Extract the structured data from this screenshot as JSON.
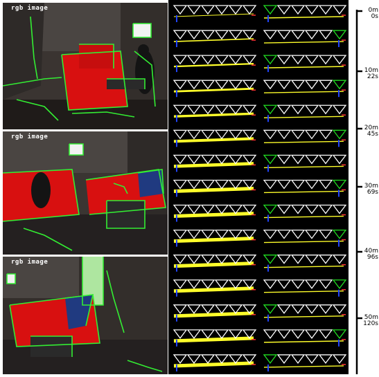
{
  "panels": [
    {
      "label": "rgb image"
    },
    {
      "label": "rgb image"
    },
    {
      "label": "rgb image"
    }
  ],
  "trajectory": {
    "rows": 15,
    "columns": 2,
    "triangles_per_row": 6,
    "colors": {
      "frame": "#ffffff",
      "path": "#ffff2a",
      "highlight": "#22dd22",
      "marker": "#2244ff",
      "accent": "#ff3333"
    }
  },
  "timeline": {
    "ticks": [
      {
        "meters": "0m",
        "seconds": "0s"
      },
      {
        "meters": "10m",
        "seconds": "22s"
      },
      {
        "meters": "20m",
        "seconds": "45s"
      },
      {
        "meters": "30m",
        "seconds": "69s"
      },
      {
        "meters": "40m",
        "seconds": "96s"
      },
      {
        "meters": "50m",
        "seconds": "120s"
      }
    ]
  },
  "colors": {
    "sofa": "#d81010",
    "edges": "#33ee33",
    "background": "#2b2522"
  }
}
